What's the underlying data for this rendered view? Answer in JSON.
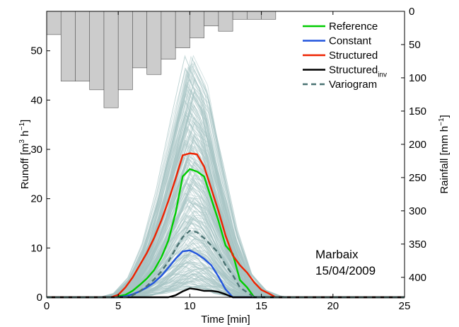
{
  "chart_data": {
    "type": "line",
    "xlabel": "Time [min]",
    "ylabel": {
      "main": "Runoff [m",
      "sup1": "3",
      "mid": " h",
      "sup2": "−1",
      "end": "]"
    },
    "y2label": {
      "main": "Rainfall [mm h",
      "sup": "−1",
      "end": "]"
    },
    "xlim": [
      0,
      25
    ],
    "ylim": [
      0,
      58
    ],
    "y2lim": [
      0,
      430
    ],
    "y2_inverted": true,
    "xticks": [
      "0",
      "5",
      "10",
      "15",
      "20",
      "25"
    ],
    "yticks": [
      "0",
      "10",
      "20",
      "30",
      "40",
      "50"
    ],
    "y2ticks": [
      "0",
      "50",
      "100",
      "150",
      "200",
      "250",
      "300",
      "350",
      "400"
    ],
    "grid": false,
    "legend_position": "top-right",
    "annotation": [
      "Marbaix",
      "15/04/2009"
    ],
    "rainfall_bars": {
      "color": "#cccccc",
      "bin_width": 1,
      "x_start": [
        0,
        1,
        2,
        3,
        4,
        5,
        6,
        7,
        8,
        9,
        10,
        11,
        12,
        13,
        14,
        15
      ],
      "values": [
        35,
        105,
        105,
        118,
        145,
        118,
        85,
        95,
        72,
        55,
        40,
        22,
        30,
        12,
        12,
        12
      ]
    },
    "ensemble": {
      "color": "#a8c4c4",
      "members": 300,
      "x": [
        0,
        4,
        5,
        6,
        7,
        8,
        9,
        10,
        11,
        12,
        13,
        14,
        15,
        16,
        17
      ],
      "lower_envelope": [
        0,
        0,
        0,
        0.1,
        0.3,
        0.8,
        1.5,
        2.2,
        1.8,
        0.8,
        0.2,
        0,
        0,
        0,
        0
      ],
      "upper_envelope": [
        0,
        0,
        0.8,
        4,
        11,
        22,
        36,
        49,
        43,
        28,
        14,
        5,
        1.5,
        0.3,
        0
      ]
    },
    "series": [
      {
        "name": "Reference",
        "color": "#00cc00",
        "dash": "solid",
        "x": [
          0,
          4.5,
          5,
          5.5,
          6,
          6.5,
          7,
          7.5,
          8,
          8.5,
          9,
          9.5,
          10,
          10.5,
          11,
          11.5,
          12,
          12.5,
          13,
          13.5,
          14,
          14.5,
          25
        ],
        "y": [
          0,
          0,
          0.2,
          0.5,
          1.3,
          2.5,
          3.8,
          5.5,
          8,
          11.5,
          17,
          24.5,
          26,
          25.5,
          24.5,
          20,
          15.5,
          10.5,
          8.8,
          3.5,
          2,
          0,
          0
        ]
      },
      {
        "name": "Constant",
        "color": "#2255dd",
        "dash": "solid",
        "x": [
          0,
          5,
          5.5,
          6,
          6.5,
          7,
          7.5,
          8,
          8.5,
          9,
          9.5,
          10,
          10.5,
          11,
          11.5,
          12,
          12.5,
          13,
          25
        ],
        "y": [
          0,
          0,
          0.2,
          0.6,
          1.2,
          2,
          3,
          4.3,
          6,
          7.8,
          9.3,
          9.5,
          8.8,
          7.8,
          6.5,
          4.2,
          1.6,
          0,
          0
        ]
      },
      {
        "name": "Structured",
        "color": "#ee2200",
        "dash": "solid",
        "x": [
          0,
          4.5,
          5,
          5.5,
          6,
          6.5,
          7,
          7.5,
          8,
          8.5,
          9,
          9.5,
          10,
          10.5,
          11,
          11.5,
          12,
          12.5,
          13,
          13.5,
          14,
          14.5,
          15,
          15.5,
          16,
          25
        ],
        "y": [
          0,
          0,
          0.5,
          2,
          4,
          6.5,
          9,
          12,
          15.5,
          19.5,
          24,
          28.8,
          29.2,
          29,
          26.5,
          22,
          17.5,
          12.5,
          8.5,
          6.5,
          5,
          3,
          1.5,
          0.8,
          0,
          0
        ]
      },
      {
        "name": "Structured",
        "name_sub": "inv",
        "color": "#000000",
        "dash": "solid",
        "x": [
          0,
          8.5,
          9,
          9.5,
          10,
          10.5,
          11,
          11.5,
          12,
          12.5,
          13,
          25
        ],
        "y": [
          0,
          0,
          0.4,
          1.2,
          1.8,
          1.6,
          1.3,
          1.3,
          1.1,
          0.6,
          0,
          0
        ]
      },
      {
        "name": "Variogram",
        "color": "#4a7272",
        "dash": "dashed",
        "x": [
          0,
          5.5,
          6,
          6.5,
          7,
          7.5,
          8,
          8.5,
          9,
          9.5,
          10,
          10.5,
          11,
          11.5,
          12,
          12.5,
          13,
          13.5,
          14,
          14.5,
          25
        ],
        "y": [
          0,
          0,
          0.4,
          1.2,
          2.3,
          3.6,
          5.2,
          7.2,
          9.8,
          12.2,
          13.5,
          13.2,
          12,
          10.5,
          9,
          6.5,
          4.5,
          2,
          1,
          0,
          0
        ]
      }
    ]
  }
}
